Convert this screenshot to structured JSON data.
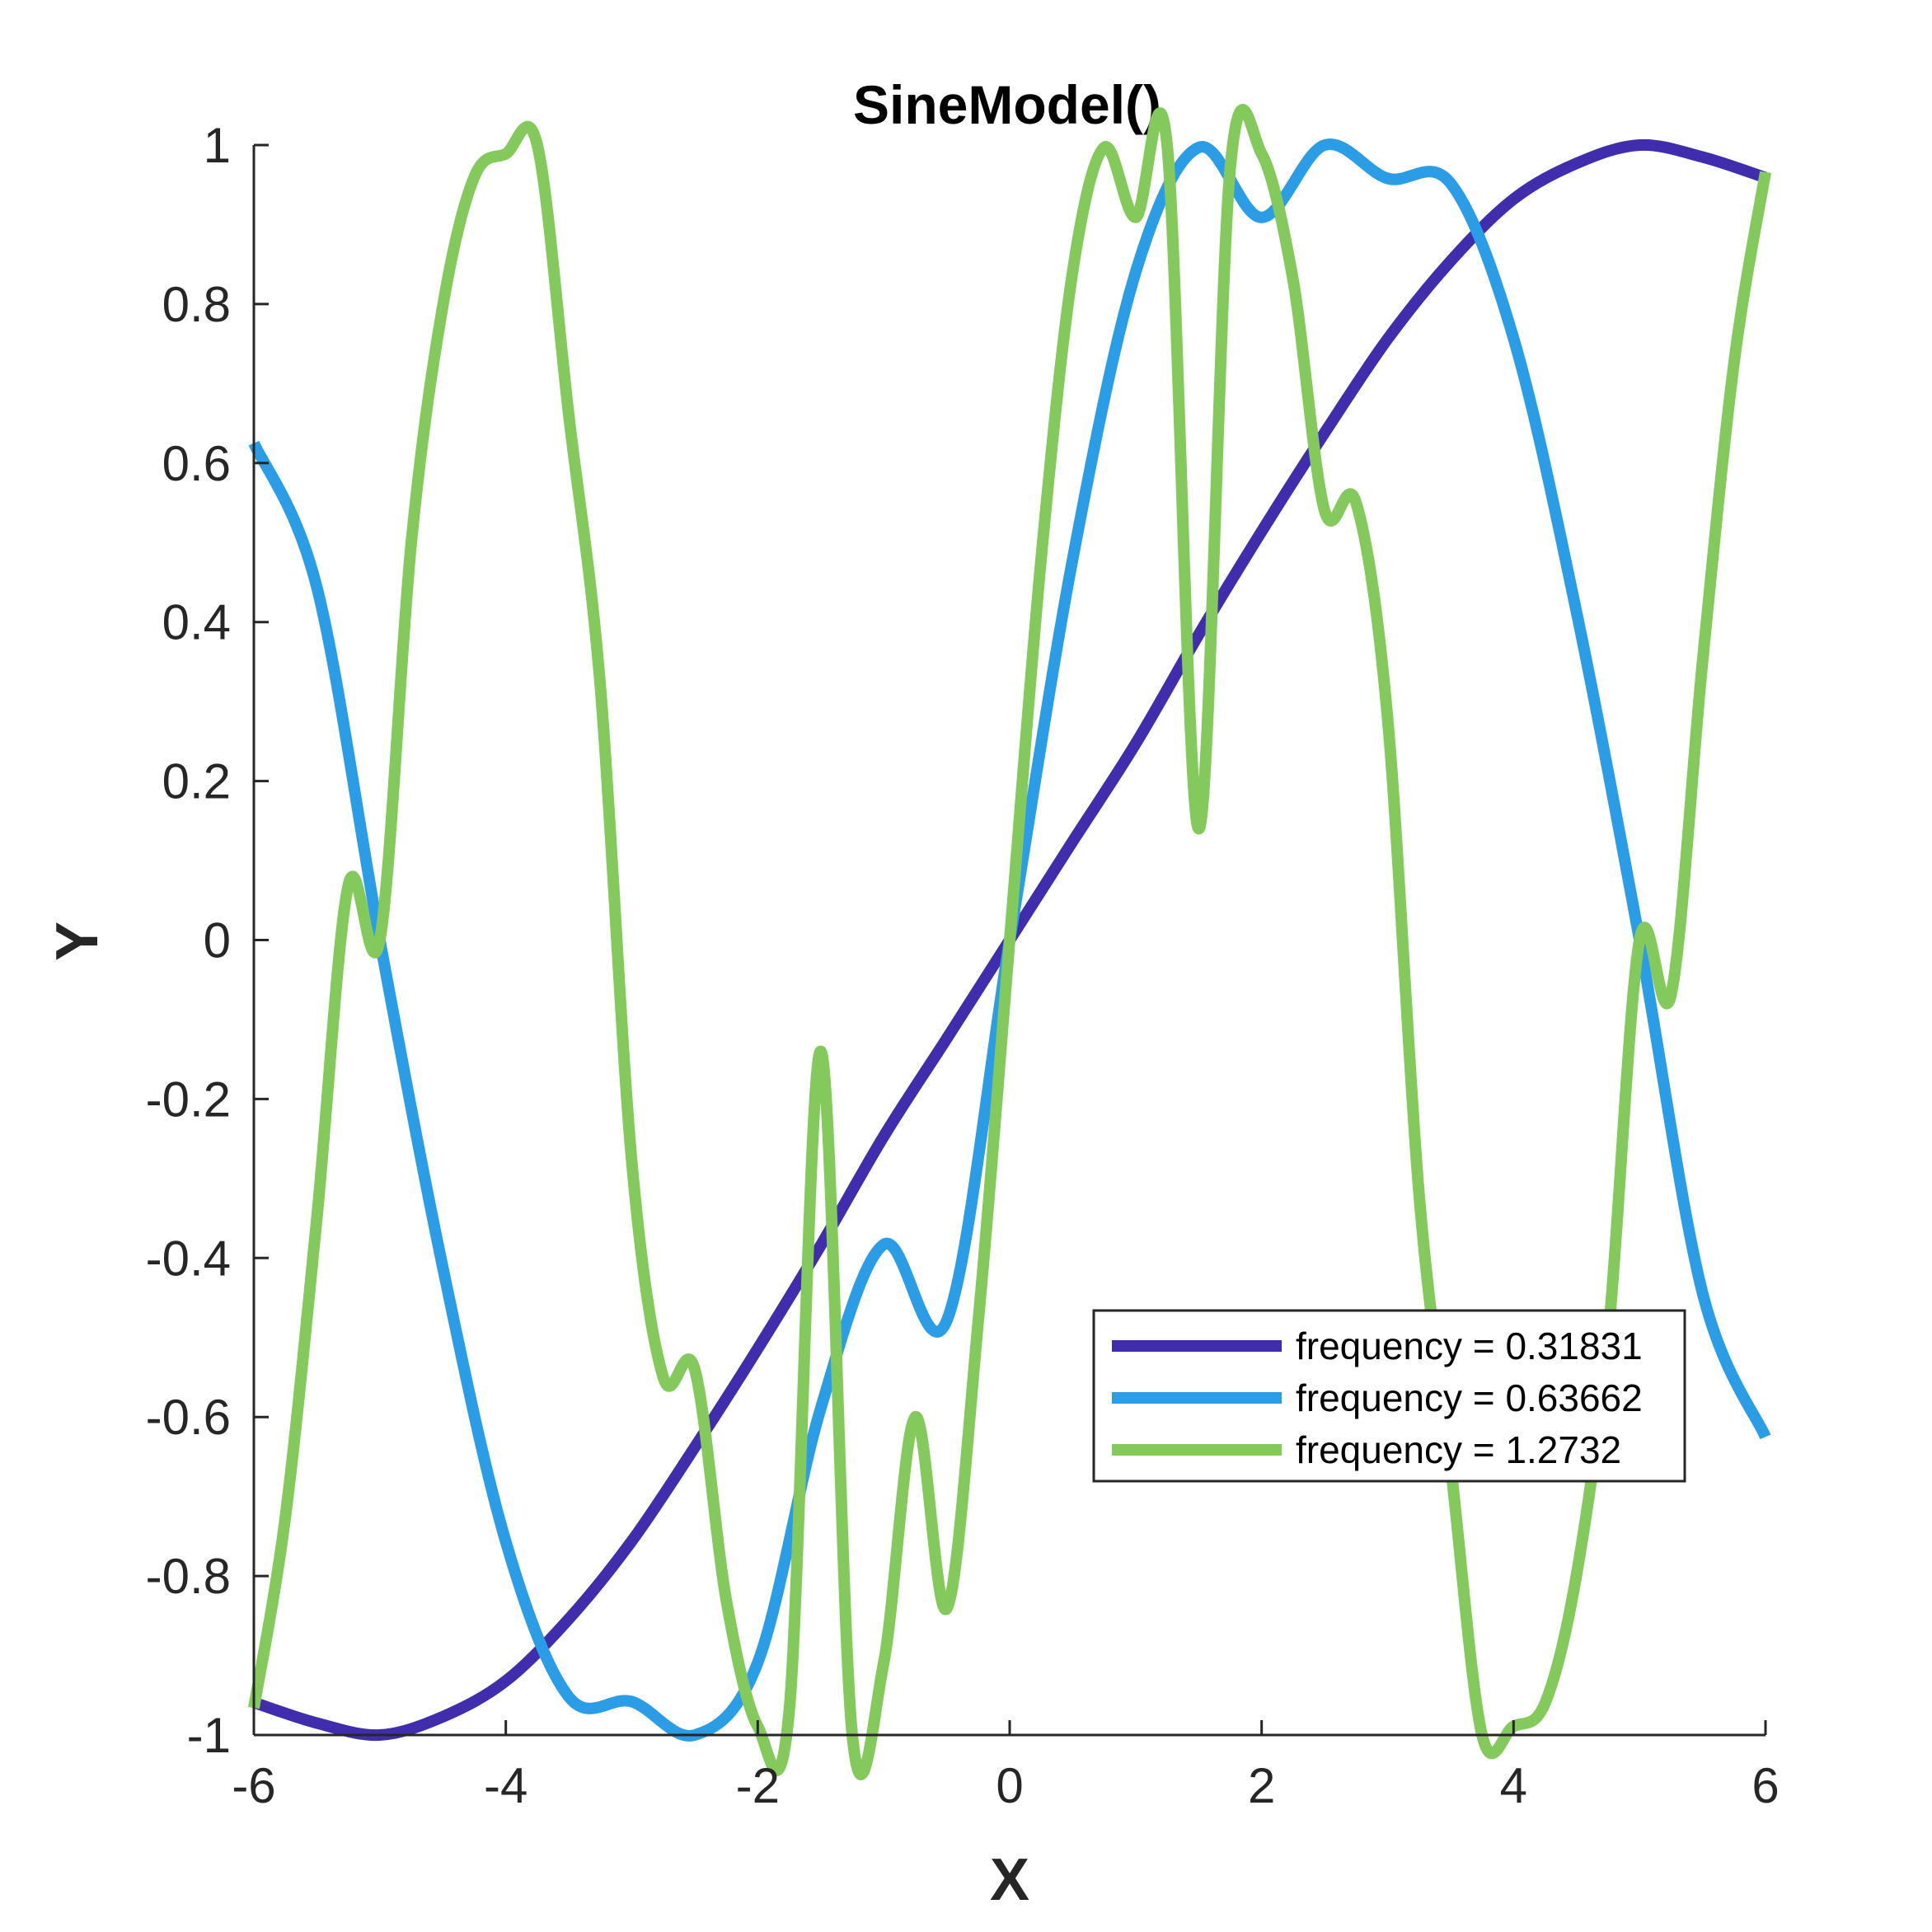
{
  "chart_data": {
    "type": "line",
    "title": "SineModel()",
    "xlabel": "X",
    "ylabel": "Y",
    "xlim": [
      -6,
      6
    ],
    "ylim": [
      -1,
      1
    ],
    "xticks": [
      -6,
      -4,
      -2,
      0,
      2,
      4,
      6
    ],
    "xtick_labels": [
      "-6",
      "-4",
      "-2",
      "0",
      "2",
      "4",
      "6"
    ],
    "yticks": [
      -1,
      -0.8,
      -0.6,
      -0.4,
      -0.2,
      0,
      0.2,
      0.4,
      0.6,
      0.8,
      1
    ],
    "ytick_labels": [
      "-1",
      "-0.8",
      "-0.6",
      "-0.4",
      "-0.2",
      "0",
      "0.2",
      "0.4",
      "0.6",
      "0.8",
      "1"
    ],
    "grid": false,
    "legend_position": "lower-right",
    "series": [
      {
        "name": "frequency = 0.31831",
        "color": "#3F2DAD",
        "x": [
          -6,
          -5.5,
          -5,
          -4.5,
          -4,
          -3.5,
          -3,
          -2.5,
          -2,
          -1.5,
          -1,
          -0.5,
          0,
          0.5,
          1,
          1.5,
          2,
          2.5,
          3,
          3.5,
          4,
          4.5,
          5,
          5.5,
          6
        ],
        "y": [
          -0.959,
          -0.985,
          -1.0,
          -0.977,
          -0.932,
          -0.854,
          -0.756,
          -0.638,
          -0.514,
          -0.384,
          -0.247,
          -0.124,
          0.0,
          0.124,
          0.247,
          0.384,
          0.514,
          0.638,
          0.756,
          0.854,
          0.932,
          0.977,
          1.0,
          0.985,
          0.959
        ]
      },
      {
        "name": "frequency = 0.63662",
        "color": "#2B9CE6",
        "x": [
          -6,
          -5.5,
          -5,
          -4.5,
          -4,
          -3.5,
          -3,
          -2.5,
          -2,
          -1.5,
          -1,
          -0.5,
          0,
          0.5,
          1,
          1.5,
          2,
          2.5,
          3,
          3.5,
          4,
          4.5,
          5,
          5.5,
          6
        ],
        "y": [
          0.625,
          0.444,
          0.0,
          -0.412,
          -0.757,
          -0.952,
          -0.958,
          -1.0,
          -0.909,
          -0.589,
          -0.383,
          -0.479,
          0.0,
          0.479,
          0.84,
          0.997,
          0.909,
          1.0,
          0.958,
          0.952,
          0.757,
          0.412,
          0.0,
          -0.444,
          -0.625
        ]
      },
      {
        "name": "frequency = 1.2732",
        "color": "#84C95B",
        "x": [
          -6,
          -5.75,
          -5.5,
          -5.25,
          -5,
          -4.75,
          -4.5,
          -4.25,
          -4,
          -3.75,
          -3.5,
          -3.25,
          -3,
          -2.75,
          -2.5,
          -2.25,
          -2,
          -1.75,
          -1.5,
          -1.25,
          -1,
          -0.75,
          -0.5,
          -0.25,
          0,
          0.25,
          0.5,
          0.75,
          1,
          1.25,
          1.5,
          1.75,
          2,
          2.25,
          2.5,
          2.75,
          3,
          3.25,
          3.5,
          3.75,
          4,
          4.25,
          4.5,
          4.75,
          5,
          5.25,
          5.5,
          5.75,
          6
        ],
        "y": [
          -0.966,
          -0.726,
          -0.35,
          0.069,
          0.0,
          0.5,
          0.798,
          0.96,
          0.989,
          1.0,
          0.66,
          0.32,
          -0.279,
          -0.55,
          -0.54,
          -0.83,
          -0.989,
          -0.97,
          -0.14,
          -1.0,
          -0.909,
          -0.6,
          -0.841,
          -0.48,
          0.0,
          0.48,
          0.841,
          0.997,
          0.909,
          1.0,
          0.14,
          0.97,
          0.989,
          0.83,
          0.54,
          0.55,
          0.279,
          -0.32,
          -0.66,
          -1.0,
          -0.989,
          -0.96,
          -0.798,
          -0.5,
          0.0,
          -0.069,
          0.35,
          0.726,
          0.966
        ]
      }
    ]
  }
}
